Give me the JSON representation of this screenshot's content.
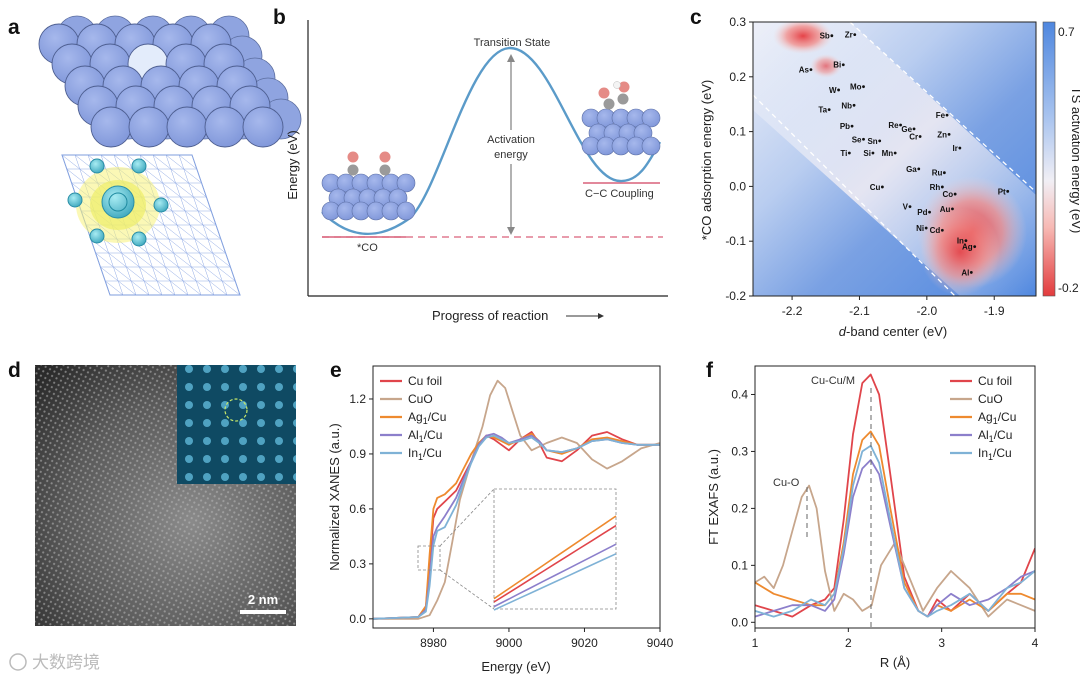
{
  "figure": {
    "panel_labels": [
      "a",
      "b",
      "c",
      "d",
      "e",
      "f"
    ],
    "watermark": "大数跨境"
  },
  "panel_b": {
    "ts_label": "Transition State",
    "activation_label_1": "Activation",
    "activation_label_2": "energy",
    "co_label": "*CO",
    "coupling_label": "C−C Coupling",
    "ylabel": "Energy (eV)",
    "xlabel": "Progress of reaction"
  },
  "panel_c": {
    "xlabel_italic": "d",
    "xlabel_rest": "-band center (eV)",
    "ylabel": "*CO adsorption energy (eV)",
    "colorbar_label": "TS activation energy (eV)",
    "cb_max": "0.7",
    "cb_min": "-0.2",
    "xticks": [
      "-2.2",
      "-2.1",
      "-2.0",
      "-1.9"
    ],
    "yticks": [
      "0.3",
      "0.2",
      "0.1",
      "0.0",
      "-0.1",
      "-0.2"
    ],
    "elements": [
      {
        "n": "Sb",
        "d": -2.141,
        "e": 0.275
      },
      {
        "n": "Zr",
        "d": -2.107,
        "e": 0.277
      },
      {
        "n": "Bi",
        "d": -2.124,
        "e": 0.222
      },
      {
        "n": "As",
        "d": -2.172,
        "e": 0.213
      },
      {
        "n": "Mo",
        "d": -2.094,
        "e": 0.182
      },
      {
        "n": "W",
        "d": -2.131,
        "e": 0.176
      },
      {
        "n": "Nb",
        "d": -2.108,
        "e": 0.148
      },
      {
        "n": "Ta",
        "d": -2.145,
        "e": 0.14
      },
      {
        "n": "Fe",
        "d": -1.97,
        "e": 0.13
      },
      {
        "n": "Pb",
        "d": -2.111,
        "e": 0.11
      },
      {
        "n": "Re",
        "d": -2.039,
        "e": 0.112
      },
      {
        "n": "Ge",
        "d": -2.019,
        "e": 0.105
      },
      {
        "n": "Zn",
        "d": -1.967,
        "e": 0.095
      },
      {
        "n": "Cr",
        "d": -2.01,
        "e": 0.091
      },
      {
        "n": "Se",
        "d": -2.094,
        "e": 0.086
      },
      {
        "n": "Sn",
        "d": -2.07,
        "e": 0.083
      },
      {
        "n": "Ir",
        "d": -1.951,
        "e": 0.07
      },
      {
        "n": "Ti",
        "d": -2.115,
        "e": 0.061
      },
      {
        "n": "Si",
        "d": -2.08,
        "e": 0.061
      },
      {
        "n": "Mn",
        "d": -2.047,
        "e": 0.061
      },
      {
        "n": "Ga",
        "d": -2.012,
        "e": 0.032
      },
      {
        "n": "Ru",
        "d": -1.974,
        "e": 0.025
      },
      {
        "n": "Rh",
        "d": -1.977,
        "e": -0.001
      },
      {
        "n": "Cu",
        "d": -2.066,
        "e": -0.001
      },
      {
        "n": "Co",
        "d": -1.958,
        "e": -0.014
      },
      {
        "n": "Pt",
        "d": -1.88,
        "e": -0.009
      },
      {
        "n": "V",
        "d": -2.025,
        "e": -0.037
      },
      {
        "n": "Pd",
        "d": -1.996,
        "e": -0.047
      },
      {
        "n": "Au",
        "d": -1.962,
        "e": -0.041
      },
      {
        "n": "Ni",
        "d": -2.001,
        "e": -0.076
      },
      {
        "n": "Cd",
        "d": -1.977,
        "e": -0.08
      },
      {
        "n": "In",
        "d": -1.942,
        "e": -0.099
      },
      {
        "n": "Ag",
        "d": -1.929,
        "e": -0.11
      },
      {
        "n": "Al",
        "d": -1.934,
        "e": -0.157
      }
    ]
  },
  "panel_d": {
    "scalebar_label": "2 nm"
  },
  "chart_data": [
    {
      "type": "line",
      "panel": "e",
      "xlabel": "Energy (eV)",
      "ylabel": "Normalized XANES (a.u.)",
      "xlim": [
        8964,
        9040
      ],
      "ylim": [
        -0.05,
        1.38
      ],
      "xticks": [
        "8980",
        "9000",
        "9020",
        "9040"
      ],
      "yticks": [
        "0.0",
        "0.3",
        "0.6",
        "0.9",
        "1.2"
      ],
      "series": [
        {
          "name": "Cu foil",
          "color": "#e0454b",
          "x": [
            8964,
            8976,
            8978,
            8979,
            8980,
            8981,
            8983,
            8986,
            8988,
            8990,
            8992,
            8994,
            8996,
            8998,
            9000,
            9003,
            9006,
            9008,
            9010,
            9014,
            9018,
            9022,
            9026,
            9030,
            9034,
            9040
          ],
          "y": [
            0,
            0.01,
            0.06,
            0.3,
            0.55,
            0.6,
            0.64,
            0.7,
            0.78,
            0.86,
            0.95,
            1.0,
            0.98,
            0.95,
            0.92,
            0.98,
            1.02,
            0.96,
            0.88,
            0.86,
            0.92,
            1.0,
            1.02,
            0.98,
            0.95,
            0.95
          ]
        },
        {
          "name": "CuO",
          "color": "#c7a68c",
          "x": [
            8964,
            8976,
            8979,
            8981,
            8983,
            8985,
            8987,
            8990,
            8993,
            8995,
            8997,
            8999,
            9001,
            9003,
            9006,
            9010,
            9014,
            9018,
            9022,
            9026,
            9030,
            9035,
            9040
          ],
          "y": [
            0,
            0,
            0.02,
            0.1,
            0.2,
            0.42,
            0.65,
            0.86,
            1.05,
            1.22,
            1.3,
            1.26,
            1.13,
            1.0,
            0.92,
            0.96,
            0.99,
            0.96,
            0.87,
            0.82,
            0.86,
            0.93,
            0.96
          ]
        },
        {
          "name": "Ag<sub>1</sub>/Cu",
          "color": "#ee8a2f",
          "x": [
            8964,
            8976,
            8978,
            8979,
            8980,
            8981,
            8983,
            8986,
            8988,
            8990,
            8992,
            8994,
            8996,
            8998,
            9000,
            9003,
            9006,
            9008,
            9010,
            9014,
            9018,
            9022,
            9026,
            9030,
            9034,
            9040
          ],
          "y": [
            0,
            0.01,
            0.07,
            0.35,
            0.6,
            0.66,
            0.68,
            0.74,
            0.82,
            0.9,
            0.96,
            1.0,
            0.99,
            0.97,
            0.95,
            0.98,
            1.01,
            0.97,
            0.92,
            0.9,
            0.93,
            0.98,
            0.99,
            0.97,
            0.95,
            0.95
          ]
        },
        {
          "name": "Al<sub>1</sub>/Cu",
          "color": "#8c7fcb",
          "x": [
            8964,
            8976,
            8978,
            8979,
            8980,
            8981,
            8983,
            8986,
            8988,
            8990,
            8992,
            8994,
            8996,
            8998,
            9000,
            9003,
            9006,
            9008,
            9010,
            9014,
            9018,
            9022,
            9026,
            9030,
            9034,
            9040
          ],
          "y": [
            0,
            0.01,
            0.05,
            0.22,
            0.45,
            0.5,
            0.56,
            0.66,
            0.76,
            0.86,
            0.95,
            1.0,
            1.01,
            0.99,
            0.96,
            0.98,
            1.0,
            0.97,
            0.92,
            0.91,
            0.93,
            0.97,
            0.98,
            0.96,
            0.95,
            0.95
          ]
        },
        {
          "name": "In<sub>1</sub>/Cu",
          "color": "#7fb2d6",
          "x": [
            8964,
            8976,
            8978,
            8979,
            8980,
            8981,
            8983,
            8986,
            8988,
            8990,
            8992,
            8994,
            8996,
            8998,
            9000,
            9003,
            9006,
            9008,
            9010,
            9014,
            9018,
            9022,
            9026,
            9030,
            9034,
            9040
          ],
          "y": [
            0,
            0.01,
            0.04,
            0.18,
            0.4,
            0.48,
            0.5,
            0.62,
            0.74,
            0.85,
            0.94,
            0.99,
            1.0,
            0.98,
            0.96,
            0.97,
            0.99,
            0.96,
            0.92,
            0.91,
            0.93,
            0.97,
            0.98,
            0.96,
            0.95,
            0.95
          ]
        }
      ]
    },
    {
      "type": "line",
      "panel": "f",
      "xlabel": "R (Å)",
      "ylabel": "FT EXAFS (a.u.)",
      "xlim": [
        1,
        4
      ],
      "ylim": [
        -0.01,
        0.45
      ],
      "xticks": [
        "1",
        "2",
        "3",
        "4"
      ],
      "yticks": [
        "0.0",
        "0.1",
        "0.2",
        "0.3",
        "0.4"
      ],
      "annotations": [
        "Cu-Cu/M",
        "Cu-O"
      ],
      "series": [
        {
          "name": "Cu foil",
          "color": "#e0454b",
          "x": [
            1,
            1.2,
            1.4,
            1.6,
            1.75,
            1.85,
            1.95,
            2.05,
            2.15,
            2.24,
            2.33,
            2.45,
            2.6,
            2.75,
            2.85,
            2.95,
            3.1,
            3.3,
            3.5,
            3.7,
            3.85,
            4
          ],
          "y": [
            0.03,
            0.02,
            0.01,
            0.03,
            0.04,
            0.06,
            0.18,
            0.33,
            0.42,
            0.435,
            0.4,
            0.26,
            0.08,
            0.02,
            0.01,
            0.04,
            0.02,
            0.05,
            0.02,
            0.05,
            0.07,
            0.13
          ]
        },
        {
          "name": "CuO",
          "color": "#c7a68c",
          "x": [
            1,
            1.1,
            1.2,
            1.3,
            1.4,
            1.5,
            1.58,
            1.66,
            1.75,
            1.85,
            1.95,
            2.05,
            2.15,
            2.25,
            2.35,
            2.5,
            2.65,
            2.8,
            2.95,
            3.1,
            3.3,
            3.5,
            3.7,
            3.85,
            4
          ],
          "y": [
            0.07,
            0.08,
            0.06,
            0.1,
            0.16,
            0.22,
            0.24,
            0.2,
            0.09,
            0.02,
            0.05,
            0.04,
            0.02,
            0.03,
            0.1,
            0.14,
            0.08,
            0.02,
            0.06,
            0.09,
            0.06,
            0.01,
            0.04,
            0.03,
            0.02
          ]
        },
        {
          "name": "Ag<sub>1</sub>/Cu",
          "color": "#ee8a2f",
          "x": [
            1,
            1.2,
            1.4,
            1.6,
            1.75,
            1.85,
            1.95,
            2.05,
            2.15,
            2.24,
            2.33,
            2.45,
            2.6,
            2.75,
            2.85,
            2.95,
            3.1,
            3.3,
            3.5,
            3.7,
            3.85,
            4
          ],
          "y": [
            0.07,
            0.05,
            0.04,
            0.03,
            0.03,
            0.05,
            0.14,
            0.26,
            0.32,
            0.335,
            0.31,
            0.2,
            0.07,
            0.02,
            0.01,
            0.03,
            0.02,
            0.04,
            0.02,
            0.05,
            0.05,
            0.04
          ]
        },
        {
          "name": "Al<sub>1</sub>/Cu",
          "color": "#8c7fcb",
          "x": [
            1,
            1.2,
            1.4,
            1.6,
            1.75,
            1.85,
            1.95,
            2.05,
            2.15,
            2.24,
            2.33,
            2.45,
            2.6,
            2.75,
            2.85,
            2.95,
            3.1,
            3.3,
            3.5,
            3.7,
            3.85,
            4
          ],
          "y": [
            0.01,
            0.02,
            0.03,
            0.03,
            0.02,
            0.04,
            0.12,
            0.22,
            0.27,
            0.285,
            0.26,
            0.17,
            0.06,
            0.02,
            0.01,
            0.03,
            0.05,
            0.03,
            0.04,
            0.06,
            0.08,
            0.09
          ]
        },
        {
          "name": "In<sub>1</sub>/Cu",
          "color": "#7fb2d6",
          "x": [
            1,
            1.2,
            1.4,
            1.6,
            1.75,
            1.85,
            1.95,
            2.05,
            2.15,
            2.24,
            2.33,
            2.45,
            2.6,
            2.75,
            2.85,
            2.95,
            3.1,
            3.3,
            3.5,
            3.7,
            3.85,
            4
          ],
          "y": [
            0.02,
            0.01,
            0.02,
            0.04,
            0.03,
            0.05,
            0.13,
            0.24,
            0.3,
            0.31,
            0.28,
            0.18,
            0.06,
            0.02,
            0.01,
            0.02,
            0.03,
            0.05,
            0.02,
            0.06,
            0.07,
            0.09
          ]
        }
      ]
    }
  ]
}
